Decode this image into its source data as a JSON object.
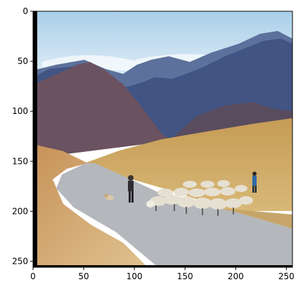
{
  "image": {
    "description_name": "mountain-road-shepherd-sheep-flock",
    "x_range": [
      0,
      256
    ],
    "y_range": [
      256,
      0
    ]
  },
  "axes": {
    "x_ticks": [
      {
        "value": 0,
        "label": "0"
      },
      {
        "value": 50,
        "label": "50"
      },
      {
        "value": 100,
        "label": "100"
      },
      {
        "value": 150,
        "label": "150"
      },
      {
        "value": 200,
        "label": "200"
      },
      {
        "value": 250,
        "label": "250"
      }
    ],
    "y_ticks": [
      {
        "value": 0,
        "label": "0"
      },
      {
        "value": 50,
        "label": "50"
      },
      {
        "value": 100,
        "label": "100"
      },
      {
        "value": 150,
        "label": "150"
      },
      {
        "value": 200,
        "label": "200"
      },
      {
        "value": 250,
        "label": "250"
      }
    ]
  },
  "colors": {
    "sky_top": "#a8cde8",
    "sky_bottom": "#e9f2f8",
    "mountain_far": "#5a6f98",
    "mountain_mid": "#3f4f7a",
    "mountain_near": "#6a4f58",
    "hill_golden": "#c9a35a",
    "field_light": "#d9b978",
    "road": "#b5b8bd",
    "sheep": "#e8e2d5",
    "person_blue": "#2f6aa8"
  }
}
